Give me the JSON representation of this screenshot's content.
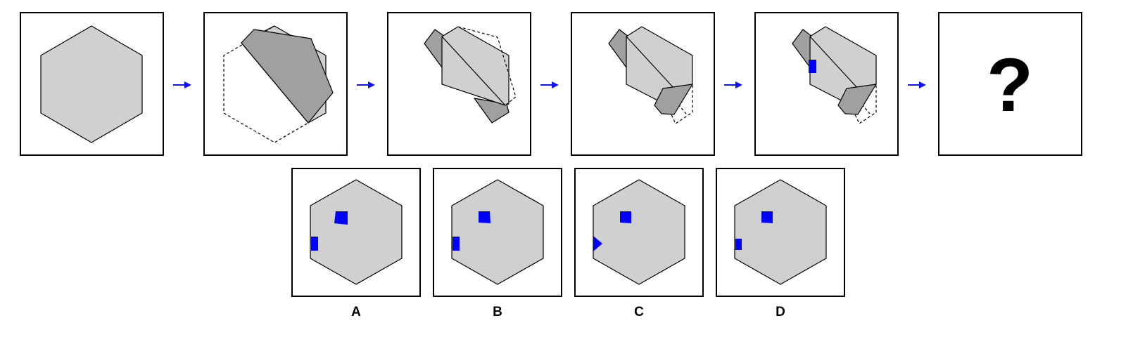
{
  "sequence": {
    "steps": [
      {
        "id": "step-1",
        "state": "unfolded-hexagon"
      },
      {
        "id": "step-2",
        "state": "fold-1"
      },
      {
        "id": "step-3",
        "state": "fold-2"
      },
      {
        "id": "step-4",
        "state": "fold-3"
      },
      {
        "id": "step-5",
        "state": "punched"
      }
    ],
    "unknown": "?"
  },
  "colors": {
    "paper": "#d0d0d0",
    "paper_folded": "#a0a0a0",
    "hole": "#0000ff",
    "arrow": "#1010ff"
  },
  "options": [
    {
      "label": "A"
    },
    {
      "label": "B"
    },
    {
      "label": "C"
    },
    {
      "label": "D"
    }
  ]
}
